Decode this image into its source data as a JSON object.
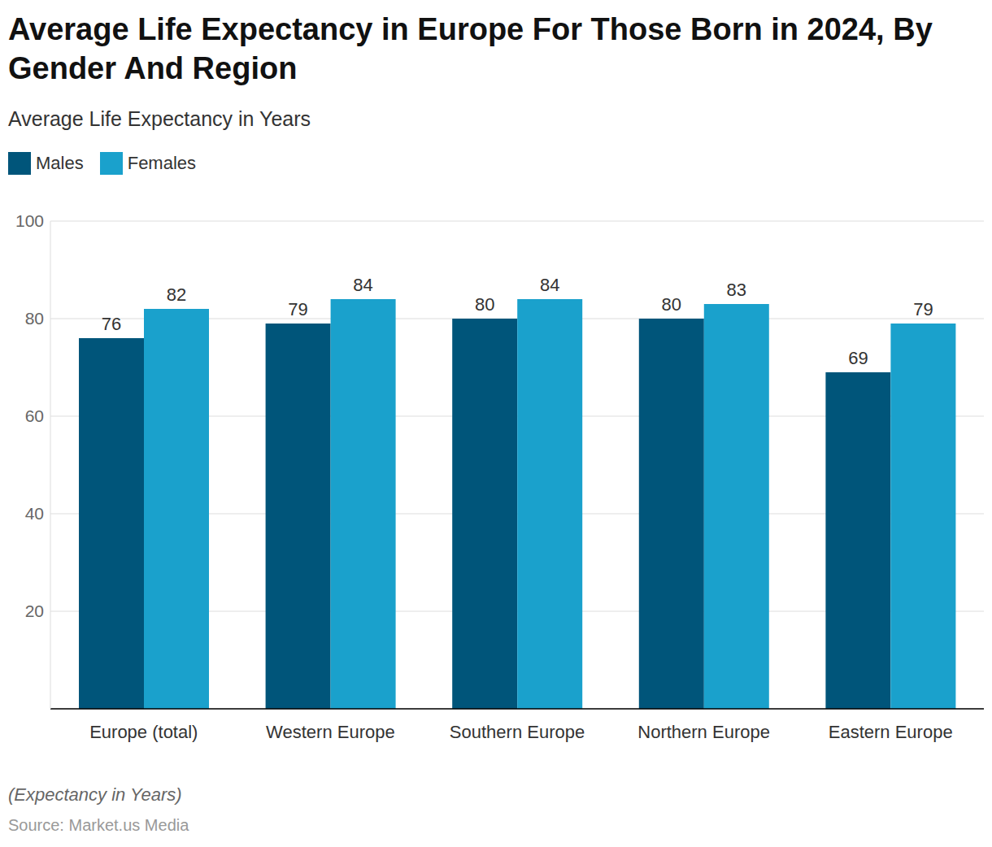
{
  "chart_data": {
    "type": "bar",
    "title": "Average Life Expectancy in Europe For Those Born in 2024, By Gender And Region",
    "subtitle": "Average Life Expectancy in Years",
    "note": "(Expectancy in Years)",
    "source": "Source: Market.us Media",
    "categories": [
      "Europe (total)",
      "Western Europe",
      "Southern Europe",
      "Northern Europe",
      "Eastern Europe"
    ],
    "series": [
      {
        "name": "Males",
        "color": "#00557a",
        "values": [
          76,
          79,
          80,
          80,
          69
        ]
      },
      {
        "name": "Females",
        "color": "#1aa1cc",
        "values": [
          82,
          84,
          84,
          83,
          79
        ]
      }
    ],
    "ylim": [
      0,
      100
    ],
    "yticks": [
      20,
      40,
      60,
      80,
      100
    ],
    "grid": true,
    "legend": "top-left",
    "data_labels": true
  }
}
